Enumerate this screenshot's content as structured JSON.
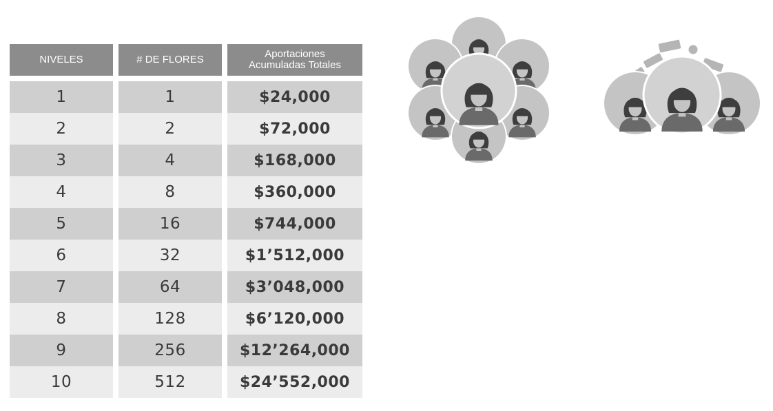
{
  "table": {
    "headers": {
      "levels": "NIVELES",
      "flowers": "# DE FLORES",
      "contrib_line1": "Aportaciones",
      "contrib_line2": "Acumuladas Totales"
    },
    "rows": [
      {
        "level": "1",
        "flowers": "1",
        "total": "$24,000"
      },
      {
        "level": "2",
        "flowers": "2",
        "total": "$72,000"
      },
      {
        "level": "3",
        "flowers": "4",
        "total": "$168,000"
      },
      {
        "level": "4",
        "flowers": "8",
        "total": "$360,000"
      },
      {
        "level": "5",
        "flowers": "16",
        "total": "$744,000"
      },
      {
        "level": "6",
        "flowers": "32",
        "total": "$1’512,000"
      },
      {
        "level": "7",
        "flowers": "64",
        "total": "$3’048,000"
      },
      {
        "level": "8",
        "flowers": "128",
        "total": "$6’120,000"
      },
      {
        "level": "9",
        "flowers": "256",
        "total": "$12’264,000"
      },
      {
        "level": "10",
        "flowers": "512",
        "total": "$24’552,000"
      }
    ]
  },
  "illustrations": {
    "flower_group_icon": "woman-avatars-flower-icon",
    "money_group_icon": "woman-avatars-money-icon",
    "colors": {
      "circle": "#c4c4c4",
      "circle_center": "#d2d2d2",
      "figure": "#6a6a6a",
      "hair": "#3e3e3e",
      "face": "#c4c4c4"
    }
  }
}
